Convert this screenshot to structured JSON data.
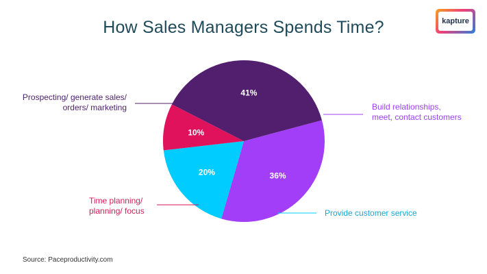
{
  "logo": {
    "text": "kapture"
  },
  "source": "Source: Paceproductivity.com",
  "chart_data": {
    "type": "pie",
    "title": "How Sales Managers Spends Time?",
    "start_angle_deg": 75,
    "direction": "clockwise",
    "slices": [
      {
        "label_lines": [
          "Build relationships,",
          "meet, contact customers"
        ],
        "value": 36,
        "display": "36%",
        "color": "#a23ef7",
        "label_color": "#9b3ff0"
      },
      {
        "label_lines": [
          "Provide customer service"
        ],
        "value": 20,
        "display": "20%",
        "color": "#00ccff",
        "label_color": "#13a9d6"
      },
      {
        "label_lines": [
          "Time planning/",
          "planning/ focus"
        ],
        "value": 10,
        "display": "10%",
        "color": "#e0125b",
        "label_color": "#d61a57"
      },
      {
        "label_lines": [
          "Prospecting/ generate sales/",
          "orders/ marketing"
        ],
        "value": 41,
        "display": "41%",
        "color": "#521f6e",
        "label_color": "#4b1f6a"
      }
    ]
  }
}
